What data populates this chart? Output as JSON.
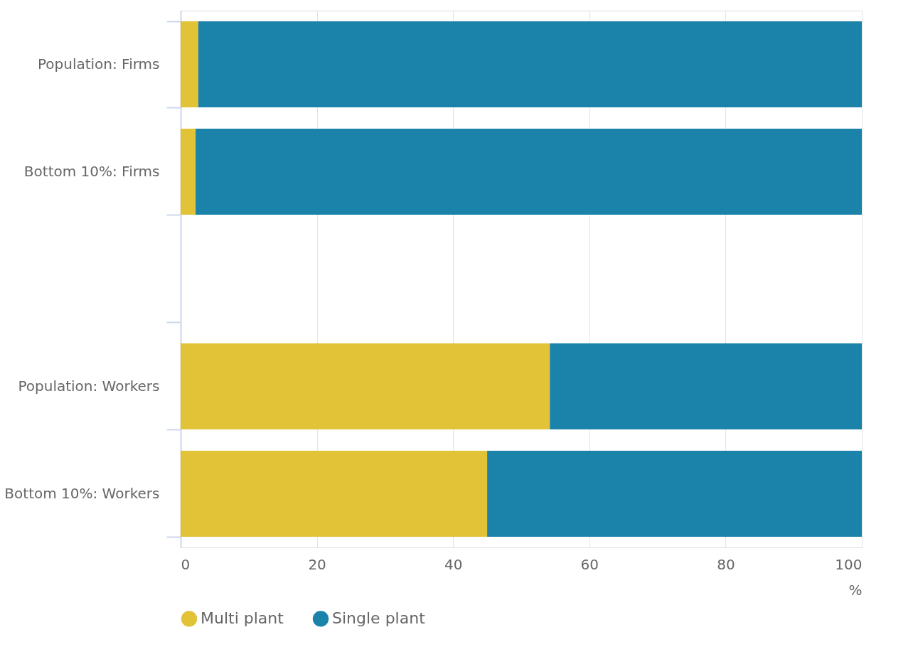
{
  "chart_data": {
    "type": "bar",
    "orientation": "horizontal",
    "stacked": true,
    "categories": [
      "Population: Firms",
      "Bottom 10%: Firms",
      null,
      "Population: Workers",
      "Bottom 10%: Workers"
    ],
    "series": [
      {
        "name": "Multi plant",
        "color": "#e2c236",
        "values": [
          2.6,
          2.2,
          null,
          54.2,
          45.0
        ]
      },
      {
        "name": "Single plant",
        "color": "#1b83aa",
        "values": [
          97.4,
          97.8,
          null,
          45.8,
          55.0
        ]
      }
    ],
    "xlabel": "%",
    "xlim": [
      0,
      100
    ],
    "xticks": [
      0,
      20,
      40,
      60,
      80,
      100
    ],
    "grid": "x",
    "legend": "bottom left"
  }
}
